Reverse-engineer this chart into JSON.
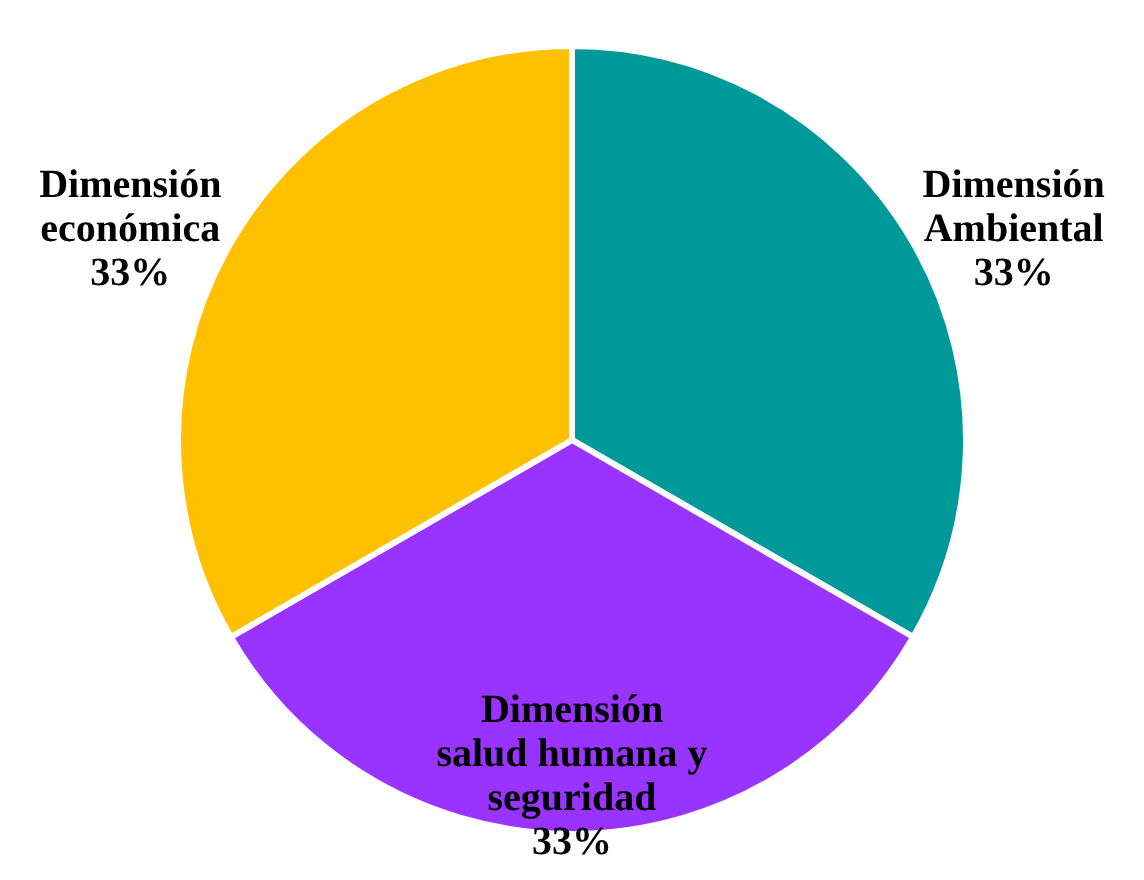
{
  "chart_data": {
    "type": "pie",
    "categories": [
      "Dimensión Ambiental",
      "Dimensión salud humana y seguridad",
      "Dimensión económica"
    ],
    "values": [
      33,
      33,
      33
    ],
    "colors": [
      "#009999",
      "#9933ff",
      "#ffc000"
    ],
    "value_labels": [
      "33%",
      "33%",
      "33%"
    ],
    "legend": false
  }
}
